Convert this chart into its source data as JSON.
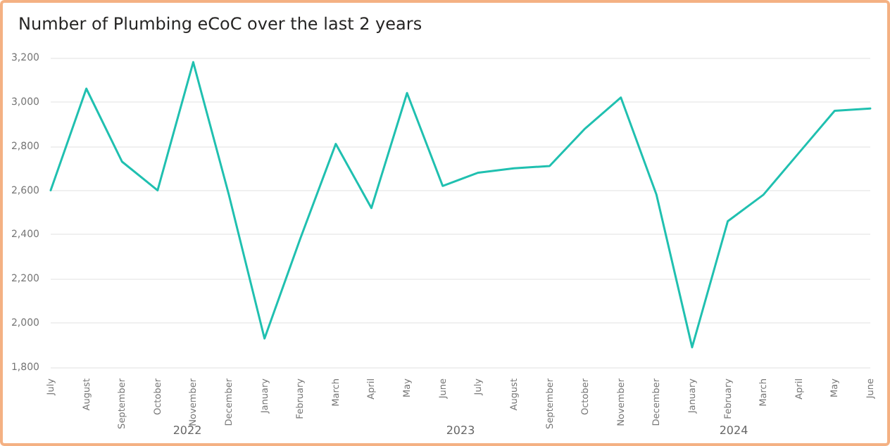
{
  "chart_data": {
    "type": "line",
    "title": "Number of Plumbing eCoC over the last 2 years",
    "categories": [
      "July",
      "August",
      "September",
      "October",
      "November",
      "December",
      "January",
      "February",
      "March",
      "April",
      "May",
      "June",
      "July",
      "August",
      "September",
      "October",
      "November",
      "December",
      "January",
      "February",
      "March",
      "April",
      "May",
      "June"
    ],
    "annotations": [
      "2022",
      "2023",
      "2024"
    ],
    "series": [
      {
        "color": "#20c0b0",
        "values": [
          2600,
          3060,
          2730,
          2600,
          3180,
          2580,
          1930,
          2380,
          2810,
          2520,
          3040,
          2620,
          2680,
          2700,
          2710,
          2880,
          3020,
          2580,
          1890,
          2460,
          2580,
          2770,
          2960,
          2970
        ]
      }
    ],
    "ylim": [
      1800,
      3200
    ],
    "yticks": [
      {
        "value": 1800,
        "label": "1,800"
      },
      {
        "value": 2000,
        "label": "2,000"
      },
      {
        "value": 2200,
        "label": "2,200"
      },
      {
        "value": 2400,
        "label": "2,400"
      },
      {
        "value": 2600,
        "label": "2,600"
      },
      {
        "value": 2800,
        "label": "2,800"
      },
      {
        "value": 3000,
        "label": "3,000"
      },
      {
        "value": 3200,
        "label": "3,200"
      }
    ],
    "grid": "y",
    "marker": "none",
    "line_style": "solid"
  }
}
